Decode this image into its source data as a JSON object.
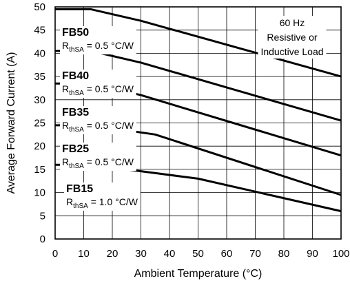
{
  "chart_data": {
    "type": "line",
    "xlabel": "Ambient Temperature (°C)",
    "ylabel": "Average Forward Current (A)",
    "xlim": [
      0,
      100
    ],
    "ylim": [
      0,
      50
    ],
    "xticks": [
      0,
      10,
      20,
      30,
      40,
      50,
      60,
      70,
      80,
      90,
      100
    ],
    "yticks": [
      0,
      5,
      10,
      15,
      20,
      25,
      30,
      35,
      40,
      45,
      50
    ],
    "grid": true,
    "legend_box": [
      "60 Hz",
      "Resistive or",
      "Inductive Load"
    ],
    "series": [
      {
        "name": "FB50",
        "note": "= 0.5 °C/W",
        "x": [
          0,
          12.5,
          30,
          100
        ],
        "y": [
          49.5,
          49.5,
          47,
          35
        ]
      },
      {
        "name": "FB40",
        "note": "= 0.5 °C/W",
        "x": [
          0,
          12.5,
          30,
          100
        ],
        "y": [
          40.5,
          40.5,
          38,
          25.5
        ]
      },
      {
        "name": "FB35",
        "note": "= 0.5 °C/W",
        "x": [
          0,
          12.5,
          30,
          100
        ],
        "y": [
          33.5,
          33.5,
          31,
          18
        ]
      },
      {
        "name": "FB25",
        "note": "= 0.5 °C/W",
        "x": [
          0,
          12.5,
          35,
          100
        ],
        "y": [
          24.5,
          24.5,
          22.5,
          9.5
        ]
      },
      {
        "name": "FB15",
        "note": "= 1.0 °C/W",
        "x": [
          0,
          12.5,
          50,
          100
        ],
        "y": [
          16,
          16,
          13,
          6
        ]
      }
    ]
  }
}
